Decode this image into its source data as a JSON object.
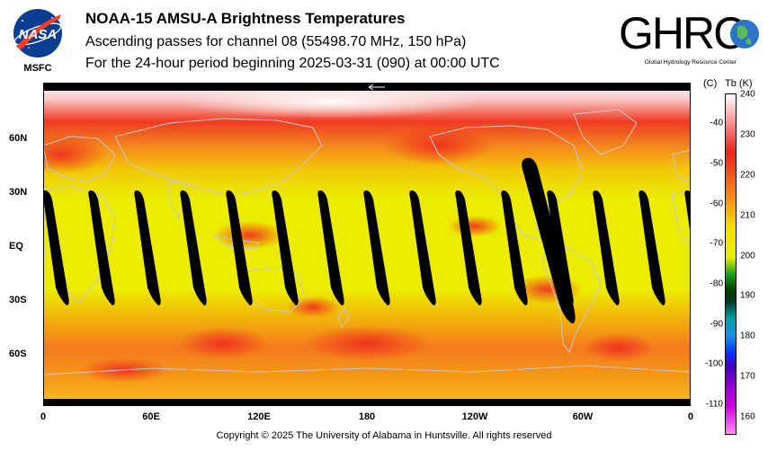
{
  "header": {
    "title": "NOAA-15 AMSU-A Brightness Temperatures",
    "subtitle1": "Ascending passes for channel 08 (55498.70 MHz, 150 hPa)",
    "subtitle2": "For the 24-hour period beginning 2025-03-31 (090) at 00:00 UTC"
  },
  "logos": {
    "nasa_text": "NASA",
    "msfc_text": "MSFC",
    "ghrc_text": "GHRC",
    "ghrc_tagline": "Global Hydrology Resource Center"
  },
  "map": {
    "lat_labels": [
      "60N",
      "30N",
      "EQ",
      "30S",
      "60S"
    ],
    "lon_labels": [
      "0",
      "60E",
      "120E",
      "180",
      "120W",
      "60W",
      "0"
    ],
    "lat_range": [
      -90,
      90
    ],
    "lon_range": [
      0,
      360
    ],
    "swath_count": 15
  },
  "colorbar": {
    "header_c": "(C)",
    "header_k": "Tb  (K)",
    "celsius_ticks": [
      "-40",
      "-50",
      "-60",
      "-70",
      "-80",
      "-90",
      "-100",
      "-110"
    ],
    "kelvin_ticks": [
      "240",
      "230",
      "220",
      "210",
      "200",
      "190",
      "180",
      "170",
      "160"
    ],
    "range_k": [
      156,
      240
    ],
    "colors": {
      "hot": "#ee2020",
      "warm": "#f48a18",
      "mid": "#f0e000",
      "cool_green": "#18a020",
      "cold_blue": "#1030ff",
      "coldest_magenta": "#d000e0"
    }
  },
  "footer": {
    "copyright": "Copyright © 2025 The University of Alabama in Huntsville.  All rights reserved"
  }
}
